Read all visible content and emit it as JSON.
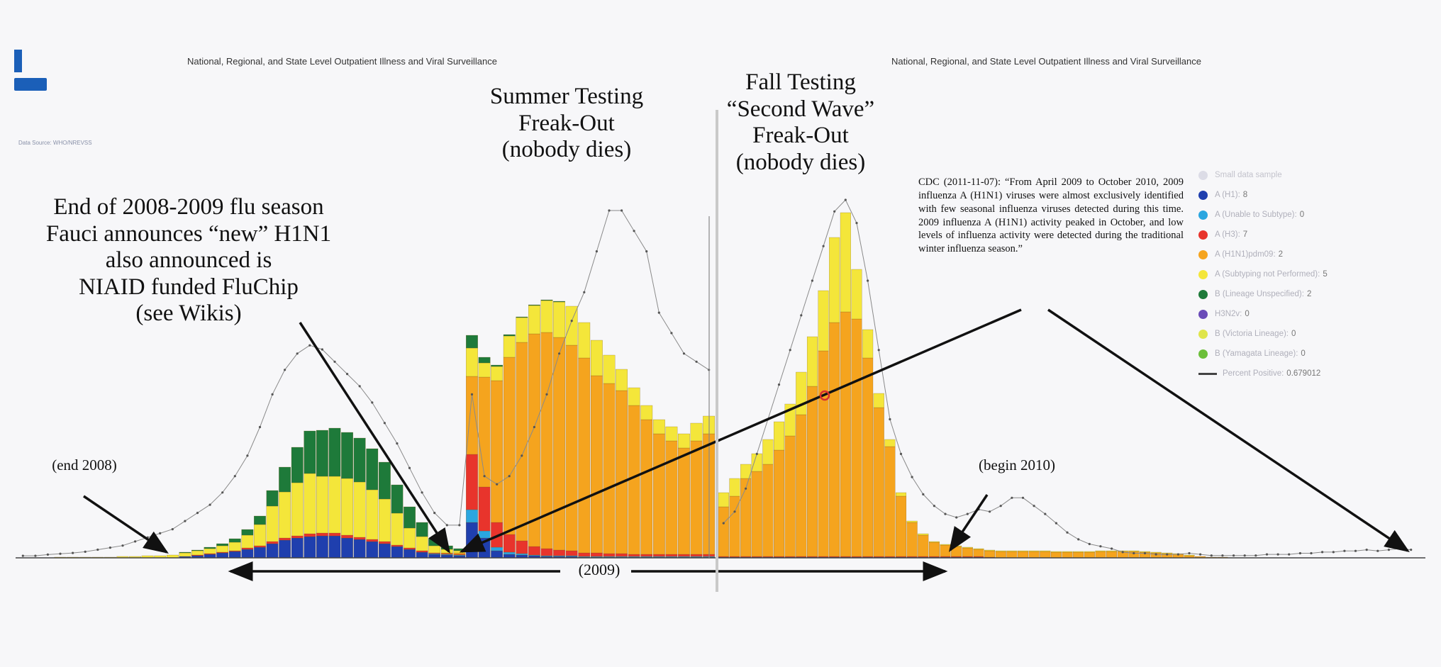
{
  "panel_titles": {
    "left": "National, Regional, and State Level Outpatient Illness and Viral Surveillance",
    "right": "National, Regional, and State Level Outpatient Illness and Viral Surveillance"
  },
  "faint_text": {
    "source": "Data Source: WHO/NREVSS"
  },
  "annotations": {
    "end_season": "End of 2008-2009 flu season\nFauci announces “new” H1N1\nalso announced is\nNIAID funded FluChip\n(see Wikis)",
    "summer": "Summer Testing\nFreak-Out\n(nobody dies)",
    "fall": "Fall Testing\n“Second Wave”\nFreak-Out\n(nobody dies)",
    "end_2008": "(end 2008)",
    "begin_2010": "(begin 2010)",
    "span_2009": "(2009)",
    "cdc_quote": "CDC (2011-11-07): “From April 2009 to October 2010, 2009 influenza A (H1N1) viruses were almost exclusively identified with few seasonal influenza viruses detected during this time. 2009 influenza A (H1N1) activity peaked in October, and low levels of influenza activity were detected during the traditional winter influenza season.”"
  },
  "legend": {
    "title": "Small data sample",
    "items": [
      {
        "label": "A (H1)",
        "value": "8",
        "color": "#1f3fae"
      },
      {
        "label": "A (Unable to Subtype)",
        "value": "0",
        "color": "#2aa6e0"
      },
      {
        "label": "A (H3)",
        "value": "7",
        "color": "#e8342c"
      },
      {
        "label": "A (H1N1)pdm09",
        "value": "2",
        "color": "#f5a41e"
      },
      {
        "label": "A (Subtyping not Performed)",
        "value": "5",
        "color": "#f4e63a"
      },
      {
        "label": "B (Lineage Unspecified)",
        "value": "2",
        "color": "#1e7a3a"
      },
      {
        "label": "H3N2v",
        "value": "0",
        "color": "#6a4bb8"
      },
      {
        "label": "B (Victoria Lineage)",
        "value": "0",
        "color": "#dfe54a"
      },
      {
        "label": "B (Yamagata Lineage)",
        "value": "0",
        "color": "#6cbf3a"
      }
    ],
    "percent_label": "Percent Positive",
    "percent_value": "0.679012"
  },
  "chart_data": {
    "type": "bar",
    "stacked": true,
    "panels": [
      {
        "series": [
          {
            "name": "A (H1)",
            "color": "#1f3fae",
            "values": [
              0,
              0,
              0,
              0,
              0,
              0,
              0,
              0,
              0,
              0,
              0,
              0,
              0,
              2,
              3,
              5,
              7,
              9,
              12,
              15,
              20,
              25,
              28,
              30,
              31,
              31,
              28,
              26,
              23,
              20,
              16,
              12,
              8,
              5,
              4,
              3,
              50,
              28,
              10,
              5,
              4,
              3,
              2,
              2,
              2,
              1,
              1,
              1,
              1,
              1,
              1,
              1,
              1,
              1,
              1,
              1
            ]
          },
          {
            "name": "A (Unable to Subtype)",
            "color": "#2aa6e0",
            "values": [
              0,
              0,
              0,
              0,
              0,
              0,
              0,
              0,
              0,
              0,
              0,
              0,
              0,
              0,
              0,
              0,
              0,
              0,
              0,
              0,
              0,
              0,
              0,
              0,
              0,
              0,
              0,
              0,
              0,
              0,
              0,
              0,
              0,
              1,
              1,
              1,
              18,
              10,
              5,
              3,
              2,
              1,
              1,
              1,
              1,
              1,
              1,
              1,
              1,
              1,
              1,
              1,
              1,
              1,
              1,
              1
            ]
          },
          {
            "name": "A (H3)",
            "color": "#e8342c",
            "values": [
              0,
              0,
              0,
              0,
              0,
              0,
              0,
              0,
              0,
              0,
              0,
              0,
              0,
              0,
              1,
              1,
              1,
              1,
              2,
              2,
              3,
              3,
              3,
              4,
              4,
              4,
              4,
              3,
              3,
              3,
              2,
              2,
              2,
              1,
              1,
              1,
              78,
              62,
              35,
              25,
              18,
              12,
              10,
              8,
              7,
              5,
              5,
              4,
              4,
              3,
              3,
              3,
              3,
              3,
              3,
              3
            ]
          },
          {
            "name": "A (H1N1)pdm09",
            "color": "#f5a41e",
            "values": [
              0,
              0,
              0,
              0,
              0,
              0,
              0,
              0,
              0,
              0,
              0,
              0,
              0,
              0,
              0,
              0,
              0,
              0,
              0,
              0,
              0,
              0,
              0,
              0,
              0,
              0,
              0,
              0,
              0,
              0,
              0,
              0,
              0,
              0,
              1,
              2,
              110,
              155,
              200,
              250,
              280,
              300,
              305,
              300,
              290,
              275,
              250,
              240,
              230,
              210,
              190,
              170,
              160,
              150,
              160,
              170
            ]
          },
          {
            "name": "A (Subtyping not Performed)",
            "color": "#f4e63a",
            "values": [
              0,
              0,
              0,
              1,
              1,
              1,
              1,
              1,
              2,
              2,
              3,
              3,
              4,
              5,
              6,
              7,
              9,
              12,
              18,
              30,
              50,
              65,
              75,
              85,
              80,
              80,
              80,
              78,
              70,
              60,
              45,
              28,
              20,
              10,
              5,
              3,
              40,
              20,
              20,
              30,
              35,
              40,
              45,
              50,
              55,
              50,
              50,
              40,
              30,
              25,
              20,
              20,
              20,
              20,
              25,
              25
            ]
          },
          {
            "name": "B (Lineage Unspecified)",
            "color": "#1e7a3a",
            "values": [
              0,
              0,
              0,
              0,
              0,
              0,
              0,
              0,
              0,
              0,
              0,
              0,
              0,
              1,
              1,
              2,
              3,
              5,
              8,
              12,
              22,
              35,
              50,
              60,
              65,
              68,
              65,
              62,
              58,
              52,
              40,
              30,
              20,
              10,
              5,
              3,
              18,
              8,
              2,
              2,
              1,
              1,
              1,
              1,
              0,
              0,
              0,
              0,
              0,
              0,
              0,
              0,
              0,
              0,
              0,
              0
            ]
          }
        ],
        "percent_positive": [
          0.5,
          0.5,
          0.8,
          1.0,
          1.2,
          1.5,
          2,
          2.5,
          3,
          4,
          5,
          6,
          7,
          9,
          11,
          13,
          16,
          20,
          25,
          32,
          40,
          46,
          50,
          52,
          51,
          48,
          45,
          42,
          38,
          33,
          28,
          22,
          16,
          11,
          8,
          8,
          40,
          20,
          18,
          20,
          25,
          32,
          40,
          50,
          58,
          65,
          75,
          85,
          85,
          80,
          75,
          60,
          55,
          50,
          48,
          46
        ]
      },
      {
        "series": [
          {
            "name": "A (H1)",
            "color": "#1f3fae",
            "values": [
              1,
              1,
              1,
              1,
              1,
              1,
              1,
              1,
              1,
              1,
              1,
              1,
              1,
              1,
              1,
              1,
              1,
              1,
              1,
              1,
              1,
              1,
              1,
              1,
              0,
              0,
              0,
              0,
              0,
              0,
              0,
              0,
              0,
              0,
              0,
              0,
              0,
              0,
              0,
              0,
              0,
              0,
              0,
              0,
              0,
              0,
              0,
              0,
              0,
              0,
              0,
              0,
              0,
              0,
              0,
              0,
              0,
              0,
              0,
              0,
              0,
              0,
              0
            ]
          },
          {
            "name": "A (H3)",
            "color": "#e8342c",
            "values": [
              1,
              1,
              1,
              1,
              1,
              1,
              1,
              1,
              1,
              1,
              1,
              1,
              1,
              1,
              1,
              1,
              1,
              1,
              1,
              1,
              1,
              1,
              1,
              1,
              1,
              0,
              0,
              0,
              0,
              0,
              0,
              0,
              0,
              0,
              0,
              0,
              0,
              0,
              0,
              0,
              0,
              0,
              0,
              0,
              0,
              0,
              0,
              0,
              0,
              0,
              0,
              0,
              0,
              0,
              0,
              0,
              0,
              0,
              0,
              0,
              0,
              0,
              0
            ]
          },
          {
            "name": "A (H1N1)pdm09",
            "color": "#f5a41e",
            "values": [
              70,
              85,
              110,
              120,
              130,
              150,
              170,
              200,
              240,
              290,
              330,
              345,
              335,
              280,
              210,
              155,
              85,
              48,
              30,
              20,
              16,
              14,
              12,
              10,
              9,
              9,
              9,
              9,
              9,
              9,
              8,
              8,
              8,
              8,
              9,
              9,
              9,
              9,
              8,
              7,
              6,
              5,
              3,
              2,
              1,
              1,
              0,
              0,
              0,
              0,
              0,
              0,
              0,
              0,
              0,
              0,
              0,
              0,
              0,
              0,
              0,
              0,
              0
            ]
          },
          {
            "name": "A (Subtyping not Performed)",
            "color": "#f4e63a",
            "values": [
              20,
              25,
              20,
              25,
              35,
              40,
              45,
              60,
              70,
              85,
              120,
              140,
              70,
              40,
              20,
              10,
              5,
              2,
              2,
              1,
              1,
              1,
              1,
              1,
              1,
              1,
              1,
              1,
              1,
              1,
              1,
              1,
              1,
              1,
              1,
              1,
              1,
              1,
              1,
              1,
              1,
              1,
              1,
              0,
              0,
              0,
              0,
              0,
              0,
              0,
              0,
              0,
              0,
              0,
              0,
              0,
              0,
              0,
              0,
              0,
              0,
              0,
              0
            ]
          }
        ],
        "percent_positive": [
          30,
          40,
          60,
          90,
          120,
          150,
          180,
          210,
          240,
          270,
          300,
          310,
          290,
          240,
          180,
          120,
          90,
          70,
          55,
          45,
          38,
          35,
          38,
          42,
          40,
          45,
          52,
          52,
          45,
          38,
          30,
          22,
          16,
          12,
          10,
          8,
          5,
          4,
          4,
          3,
          3,
          3,
          4,
          3,
          2,
          2,
          2,
          2,
          2,
          3,
          3,
          3,
          4,
          4,
          5,
          5,
          6,
          6,
          7,
          6,
          7,
          8,
          7
        ]
      }
    ]
  }
}
